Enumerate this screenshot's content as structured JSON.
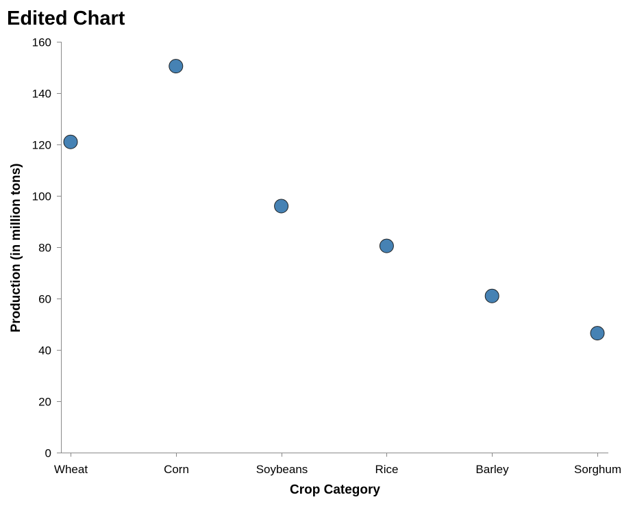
{
  "chart_data": {
    "type": "scatter",
    "title": "Edited Chart",
    "xlabel": "Crop Category",
    "ylabel": "Production (in million tons)",
    "categories": [
      "Wheat",
      "Corn",
      "Soybeans",
      "Rice",
      "Barley",
      "Sorghum"
    ],
    "values": [
      121,
      150.5,
      96,
      80.5,
      61,
      46.5
    ],
    "ylim": [
      0,
      160
    ],
    "yticks": [
      "0",
      "20",
      "40",
      "60",
      "80",
      "100",
      "120",
      "140",
      "160"
    ],
    "grid": false,
    "legend": "none",
    "colors": {
      "point_fill": "#4682b4",
      "point_stroke": "#1f1f1f",
      "axis": "#888888",
      "text": "#000000"
    }
  }
}
